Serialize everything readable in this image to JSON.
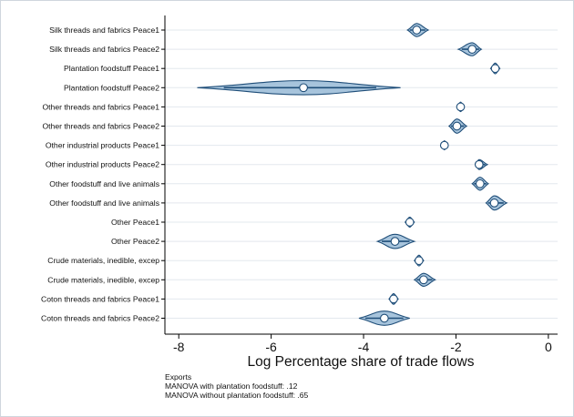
{
  "chart_data": {
    "type": "violin",
    "xlabel": "Log Percentage share of trade flows",
    "xlim": [
      -8.3,
      0.2
    ],
    "xticks": [
      -8,
      -6,
      -4,
      -2,
      0
    ],
    "xtick_labels": [
      "-8",
      "-6",
      "-4",
      "-2",
      "0"
    ],
    "grid": "horizontal",
    "categories": [
      "Silk threads and fabrics Peace1",
      "Silk threads and fabrics Peace2",
      "Plantation foodstuff Peace1",
      "Plantation foodstuff Peace2",
      "Other threads and fabrics Peace1",
      "Other threads and fabrics Peace2",
      "Other industrial products Peace1",
      "Other industrial products Peace2",
      "Other foodstuff and live animals",
      "Other foodstuff and live animals",
      "Other Peace1",
      "Other Peace2",
      "Crude materials, inedible, excep",
      "Crude materials, inedible, excep",
      "Coton threads and fabrics Peace1",
      "Coton threads and fabrics Peace2"
    ],
    "violins": [
      {
        "median": -2.85,
        "min": -3.05,
        "max": -2.6,
        "width": 0.55
      },
      {
        "median": -1.65,
        "min": -1.95,
        "max": -1.45,
        "width": 0.55
      },
      {
        "median": -1.15,
        "min": -1.25,
        "max": -1.05,
        "width": 0.45
      },
      {
        "median": -5.3,
        "min": -7.6,
        "max": -3.2,
        "width": 0.6
      },
      {
        "median": -1.9,
        "min": -1.97,
        "max": -1.83,
        "width": 0.4
      },
      {
        "median": -1.98,
        "min": -2.15,
        "max": -1.77,
        "width": 0.6
      },
      {
        "median": -2.25,
        "min": -2.32,
        "max": -2.18,
        "width": 0.38
      },
      {
        "median": -1.5,
        "min": -1.58,
        "max": -1.32,
        "width": 0.42
      },
      {
        "median": -1.48,
        "min": -1.65,
        "max": -1.3,
        "width": 0.55
      },
      {
        "median": -1.17,
        "min": -1.35,
        "max": -0.9,
        "width": 0.6
      },
      {
        "median": -3.0,
        "min": -3.1,
        "max": -2.9,
        "width": 0.42
      },
      {
        "median": -3.32,
        "min": -3.7,
        "max": -2.9,
        "width": 0.6
      },
      {
        "median": -2.8,
        "min": -2.9,
        "max": -2.7,
        "width": 0.45
      },
      {
        "median": -2.7,
        "min": -2.9,
        "max": -2.45,
        "width": 0.55
      },
      {
        "median": -3.35,
        "min": -3.45,
        "max": -3.25,
        "width": 0.45
      },
      {
        "median": -3.55,
        "min": -4.1,
        "max": -3.0,
        "width": 0.6
      }
    ],
    "colors": {
      "violin_fill": "#a7c4dc",
      "violin_stroke": "#1f4e79",
      "median_fill": "#ffffff",
      "grid": "#e3e8ee",
      "axis": "#000000"
    }
  },
  "notes": [
    "Exports",
    "MANOVA with plantation foodstuff: .12",
    "MANOVA without plantation foodstuff: .65"
  ]
}
